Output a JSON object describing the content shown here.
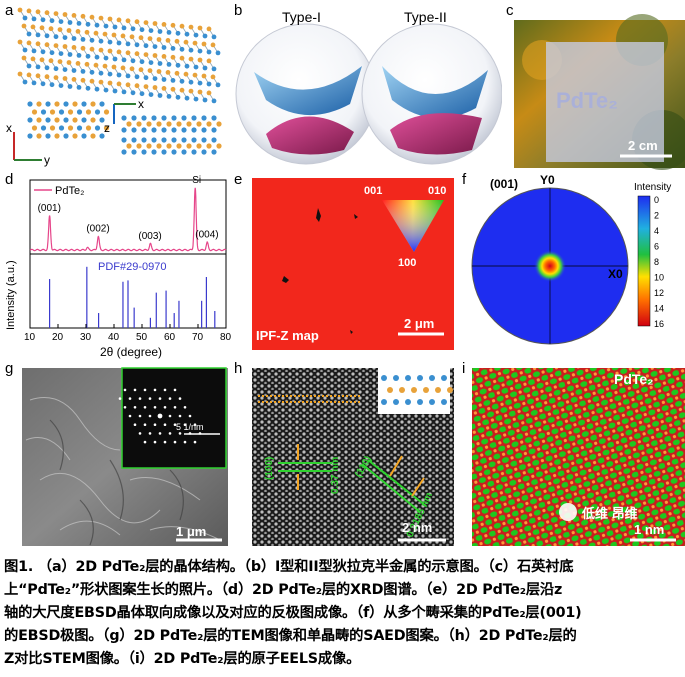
{
  "panels": {
    "a": {
      "label": "a",
      "axes": {
        "x": "x",
        "y": "y",
        "z": "z"
      }
    },
    "b": {
      "label": "b",
      "type1": "Type-I",
      "type2": "Type-II"
    },
    "c": {
      "label": "c",
      "overlay_text": "PdTe₂",
      "scalebar": "2 cm"
    },
    "d": {
      "label": "d"
    },
    "e": {
      "label": "e",
      "map_label": "IPF-Z map",
      "scalebar": "2 μm",
      "tri_001": "001",
      "tri_010": "010",
      "tri_100": "100"
    },
    "f": {
      "label": "f",
      "pole": "(001)",
      "y0": "Y0",
      "x0": "X0",
      "intensity_title": "Intensity",
      "colorbar_ticks": [
        "0",
        "2",
        "4",
        "6",
        "8",
        "10",
        "12",
        "14",
        "16"
      ]
    },
    "g": {
      "label": "g",
      "scalebar": "1 μm",
      "inset_scalebar": "5 1/nm"
    },
    "h": {
      "label": "h",
      "plane1": "(100)",
      "d1": "0.37 nm",
      "plane2": "(110)",
      "d2": "0.2185 nm",
      "scalebar": "2 nm"
    },
    "i": {
      "label": "i",
      "title": "PdTe₂",
      "scalebar": "1 nm",
      "watermark": "低维 昂维"
    }
  },
  "chart_data": {
    "type": "line",
    "legend": "PdTe₂",
    "ylabel": "Intensity (a.u.)",
    "xlabel": "2θ (degree)",
    "xlim": [
      10,
      80
    ],
    "xticks": [
      "10",
      "20",
      "30",
      "40",
      "50",
      "60",
      "70",
      "80"
    ],
    "peak_labels": [
      {
        "text": "(001)",
        "x": 17.0,
        "h": 0.55
      },
      {
        "text": "(002)",
        "x": 34.4,
        "h": 0.22
      },
      {
        "text": "(003)",
        "x": 53.0,
        "h": 0.1
      },
      {
        "text": "Si",
        "x": 69.0,
        "h": 1.0
      },
      {
        "text": "(004)",
        "x": 73.3,
        "h": 0.12
      }
    ],
    "minor_peaks": [
      {
        "x": 30.5,
        "h": 0.04
      }
    ],
    "reference": {
      "name": "PDF#29-0970",
      "sticks": [
        {
          "x": 17.0,
          "h": 0.72
        },
        {
          "x": 30.3,
          "h": 0.9
        },
        {
          "x": 34.5,
          "h": 0.22
        },
        {
          "x": 43.2,
          "h": 0.68
        },
        {
          "x": 45.0,
          "h": 0.7
        },
        {
          "x": 47.2,
          "h": 0.3
        },
        {
          "x": 53.0,
          "h": 0.15
        },
        {
          "x": 55.1,
          "h": 0.52
        },
        {
          "x": 58.6,
          "h": 0.55
        },
        {
          "x": 61.5,
          "h": 0.22
        },
        {
          "x": 63.2,
          "h": 0.4
        },
        {
          "x": 71.3,
          "h": 0.4
        },
        {
          "x": 73.0,
          "h": 0.75
        },
        {
          "x": 76.0,
          "h": 0.25
        }
      ]
    }
  },
  "caption": {
    "line1": "图1. （a）2D PdTe₂层的晶体结构。（b）I型和II型狄拉克半金属的示意图。（c）石英衬底",
    "line2": "上“PdTe₂”形状图案生长的照片。（d）2D PdTe₂层的XRD图谱。（e）2D PdTe₂层沿z",
    "line3": "轴的大尺度EBSD晶体取向成像以及对应的反极图成像。（f）从多个畴采集的PdTe₂层(001)",
    "line4": "的EBSD极图。（g）2D PdTe₂层的TEM图像和单晶畴的SAED图案。（h）2D PdTe₂层的",
    "line5": "Z对比STEM图像。（i）2D PdTe₂层的原子EELS成像。"
  },
  "colors": {
    "xrd_line": "#e6468a",
    "ref_stick": "#3a3acd",
    "ipf_red": "#f2271c",
    "pole_blue": "#1e2df0",
    "scale_green": "#2fd22f",
    "fringe_orange": "#f5a623",
    "eels_red": "#d81e1e",
    "eels_green": "#1ec81e"
  }
}
